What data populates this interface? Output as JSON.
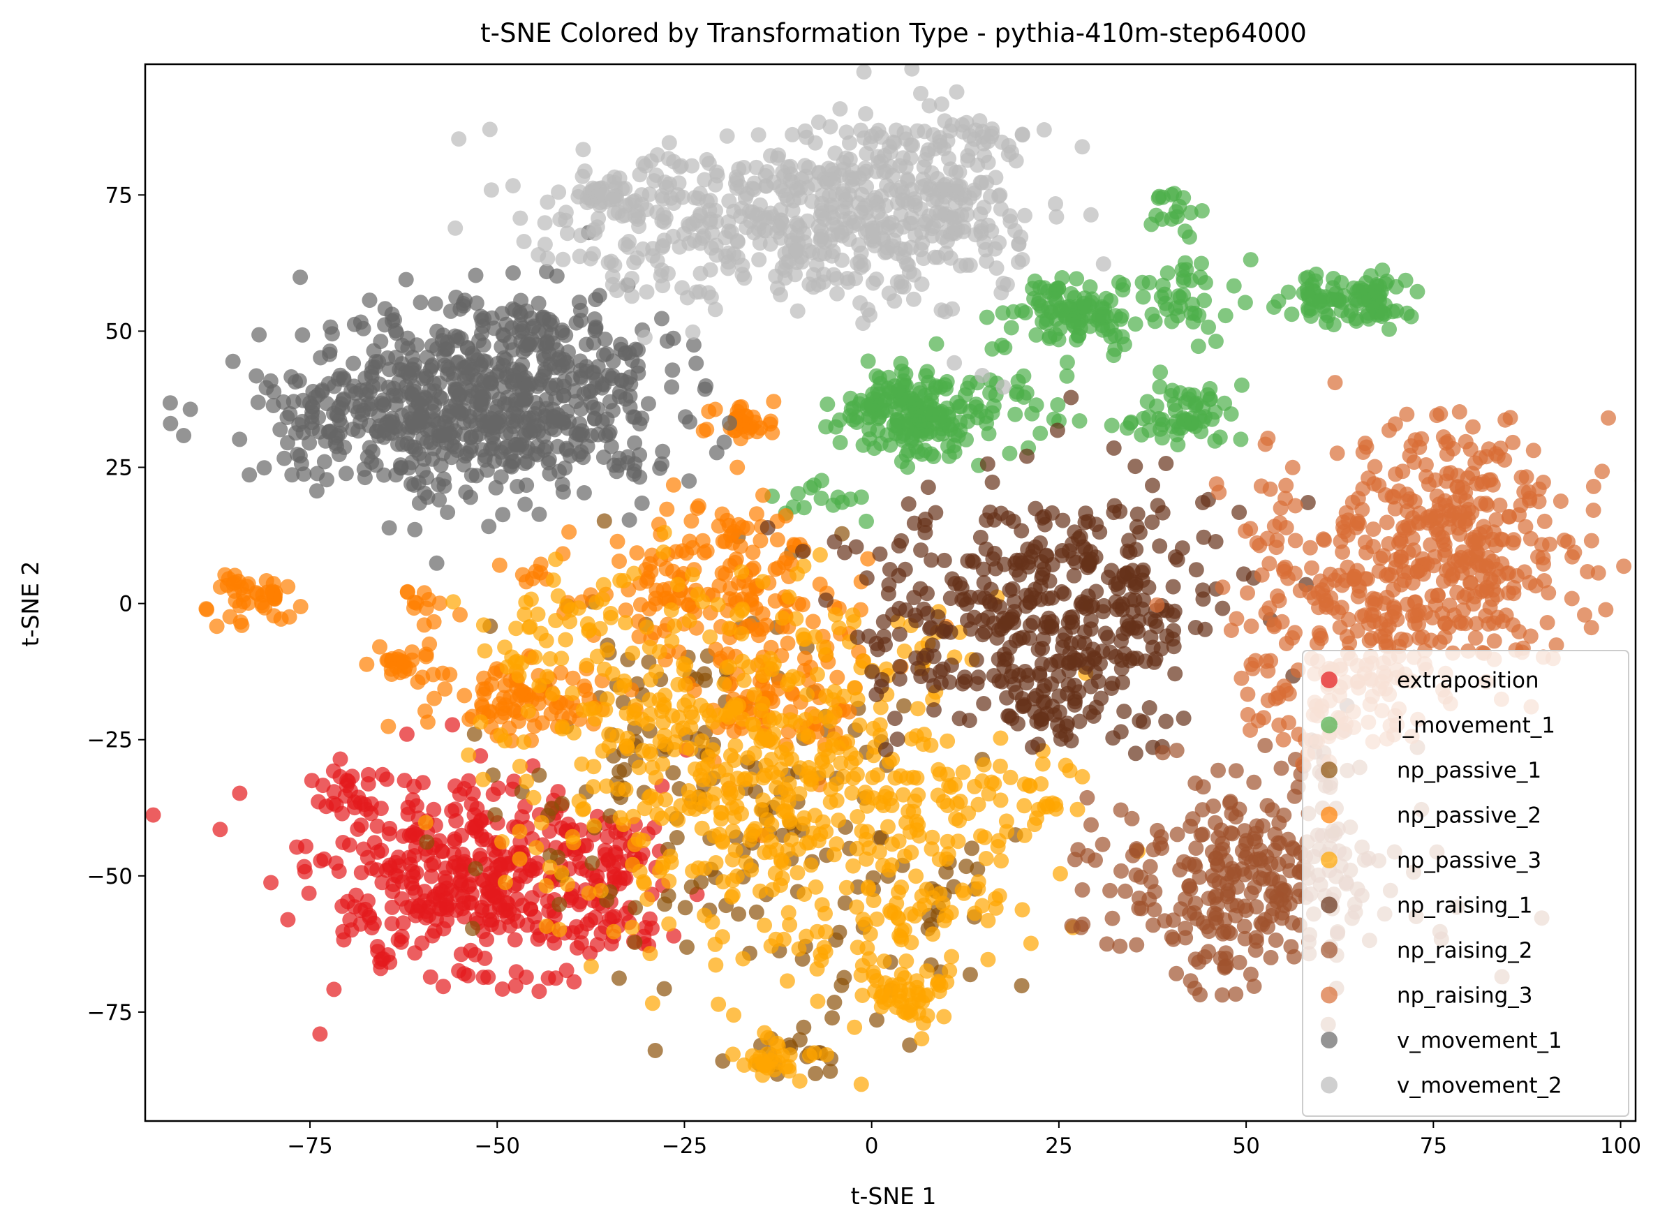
{
  "chart_data": {
    "type": "scatter",
    "title": "t-SNE Colored by Transformation Type - pythia-410m-step64000",
    "xlabel": "t-SNE 1",
    "ylabel": "t-SNE 2",
    "xlim": [
      -97,
      102
    ],
    "ylim": [
      -95,
      99
    ],
    "xticks": [
      -75,
      -50,
      -25,
      0,
      25,
      50,
      75,
      100
    ],
    "yticks": [
      -75,
      -50,
      -25,
      0,
      25,
      50,
      75
    ],
    "xtick_labels": [
      "−75",
      "−50",
      "−25",
      "0",
      "25",
      "50",
      "75",
      "100"
    ],
    "ytick_labels": [
      "−75",
      "−50",
      "−25",
      "0",
      "25",
      "50",
      "75"
    ],
    "grid": false,
    "legend_position": "lower-right",
    "marker_alpha": 0.7,
    "series": [
      {
        "name": "extraposition",
        "color": "#e41a1c",
        "clusters": [
          {
            "cx": -52,
            "cy": -52,
            "sx": 11,
            "sy": 9,
            "n": 420
          },
          {
            "cx": -33,
            "cy": -48,
            "sx": 3,
            "sy": 4,
            "n": 30
          },
          {
            "cx": -68,
            "cy": -35,
            "sx": 4,
            "sy": 3,
            "n": 30
          }
        ]
      },
      {
        "name": "i_movement_1",
        "color": "#4daf4a",
        "clusters": [
          {
            "cx": 5,
            "cy": 35,
            "sx": 5,
            "sy": 4,
            "n": 200
          },
          {
            "cx": 27,
            "cy": 53,
            "sx": 4,
            "sy": 3,
            "n": 110
          },
          {
            "cx": 42,
            "cy": 35,
            "sx": 3,
            "sy": 3,
            "n": 60
          },
          {
            "cx": 65,
            "cy": 56,
            "sx": 4,
            "sy": 2.5,
            "n": 100
          },
          {
            "cx": 40,
            "cy": 73,
            "sx": 1.2,
            "sy": 2,
            "n": 15
          },
          {
            "cx": 43,
            "cy": 58,
            "sx": 4,
            "sy": 5,
            "n": 40
          },
          {
            "cx": -6,
            "cy": 19,
            "sx": 3,
            "sy": 2,
            "n": 15
          },
          {
            "cx": 20,
            "cy": 38,
            "sx": 6,
            "sy": 5,
            "n": 25
          }
        ]
      },
      {
        "name": "np_passive_1",
        "color": "#8c510a",
        "clusters": [
          {
            "cx": -25,
            "cy": -30,
            "sx": 14,
            "sy": 20,
            "n": 140
          },
          {
            "cx": -5,
            "cy": -55,
            "sx": 12,
            "sy": 12,
            "n": 60
          },
          {
            "cx": -10,
            "cy": -82,
            "sx": 3,
            "sy": 2,
            "n": 15
          }
        ]
      },
      {
        "name": "np_passive_2",
        "color": "#ff7f00",
        "clusters": [
          {
            "cx": -20,
            "cy": 3,
            "sx": 9,
            "sy": 8,
            "n": 170
          },
          {
            "cx": -47,
            "cy": -18,
            "sx": 6,
            "sy": 4,
            "n": 90
          },
          {
            "cx": -13,
            "cy": -18,
            "sx": 6,
            "sy": 6,
            "n": 80
          },
          {
            "cx": -83,
            "cy": 1,
            "sx": 3,
            "sy": 2.5,
            "n": 45
          },
          {
            "cx": -17,
            "cy": 33,
            "sx": 2.5,
            "sy": 2,
            "n": 35
          },
          {
            "cx": -63,
            "cy": -11,
            "sx": 3,
            "sy": 2,
            "n": 25
          },
          {
            "cx": -59,
            "cy": 0,
            "sx": 2,
            "sy": 2,
            "n": 12
          },
          {
            "cx": -45,
            "cy": 6,
            "sx": 2,
            "sy": 1.5,
            "n": 8
          },
          {
            "cx": -20,
            "cy": 15,
            "sx": 3,
            "sy": 2,
            "n": 10
          }
        ]
      },
      {
        "name": "np_passive_3",
        "color": "#ffa500",
        "clusters": [
          {
            "cx": -18,
            "cy": -30,
            "sx": 14,
            "sy": 17,
            "n": 460
          },
          {
            "cx": 5,
            "cy": -45,
            "sx": 10,
            "sy": 14,
            "n": 160
          },
          {
            "cx": 5,
            "cy": -72,
            "sx": 3,
            "sy": 2.5,
            "n": 45
          },
          {
            "cx": -12,
            "cy": -84,
            "sx": 3,
            "sy": 2,
            "n": 30
          },
          {
            "cx": 20,
            "cy": -35,
            "sx": 4,
            "sy": 3,
            "n": 25
          },
          {
            "cx": -40,
            "cy": -5,
            "sx": 6,
            "sy": 6,
            "n": 40
          }
        ]
      },
      {
        "name": "np_raising_1",
        "color": "#663219",
        "clusters": [
          {
            "cx": 23,
            "cy": 0,
            "sx": 12,
            "sy": 10,
            "n": 400
          },
          {
            "cx": 25,
            "cy": -20,
            "sx": 4,
            "sy": 4,
            "n": 40
          },
          {
            "cx": 15,
            "cy": -15,
            "sx": 6,
            "sy": 4,
            "n": 25
          }
        ]
      },
      {
        "name": "np_raising_2",
        "color": "#a0522d",
        "clusters": [
          {
            "cx": 50,
            "cy": -52,
            "sx": 10,
            "sy": 9,
            "n": 300
          },
          {
            "cx": 62,
            "cy": -30,
            "sx": 4,
            "sy": 4,
            "n": 15
          }
        ]
      },
      {
        "name": "np_raising_3",
        "color": "#d96e36",
        "clusters": [
          {
            "cx": 72,
            "cy": 5,
            "sx": 11,
            "sy": 12,
            "n": 360
          },
          {
            "cx": 80,
            "cy": 15,
            "sx": 7,
            "sy": 9,
            "n": 140
          },
          {
            "cx": 60,
            "cy": -15,
            "sx": 6,
            "sy": 8,
            "n": 80
          }
        ]
      },
      {
        "name": "v_movement_1",
        "color": "#666666",
        "clusters": [
          {
            "cx": -53,
            "cy": 36,
            "sx": 13,
            "sy": 8,
            "n": 650
          },
          {
            "cx": -45,
            "cy": 50,
            "sx": 9,
            "sy": 5,
            "n": 90
          },
          {
            "cx": -75,
            "cy": 35,
            "sx": 3,
            "sy": 4,
            "n": 30
          }
        ]
      },
      {
        "name": "v_movement_2",
        "color": "#bbbbbb",
        "clusters": [
          {
            "cx": -20,
            "cy": 70,
            "sx": 13,
            "sy": 7,
            "n": 320
          },
          {
            "cx": 5,
            "cy": 73,
            "sx": 9,
            "sy": 9,
            "n": 300
          },
          {
            "cx": 12,
            "cy": 86,
            "sx": 4,
            "sy": 2,
            "n": 30
          },
          {
            "cx": -35,
            "cy": 75,
            "sx": 4,
            "sy": 2,
            "n": 30
          }
        ]
      }
    ]
  }
}
